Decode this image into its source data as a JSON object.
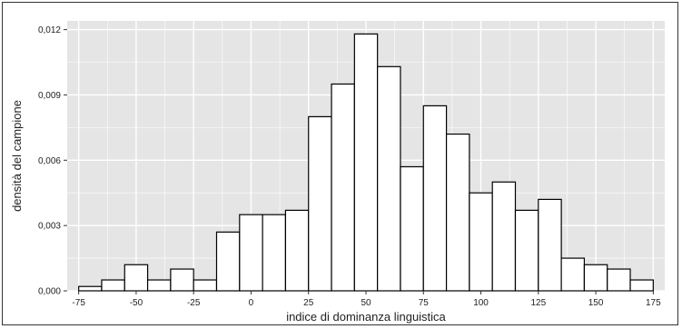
{
  "chart_data": {
    "type": "bar",
    "xlabel": "indice di dominanza linguistica",
    "ylabel": "densità del campione",
    "xlim": [
      -80,
      180
    ],
    "ylim": [
      0,
      0.0124
    ],
    "grid": true,
    "x_ticks": [
      {
        "value": -75,
        "label": "-75"
      },
      {
        "value": -50,
        "label": "-50"
      },
      {
        "value": -25,
        "label": "-25"
      },
      {
        "value": 0,
        "label": "0"
      },
      {
        "value": 25,
        "label": "25"
      },
      {
        "value": 50,
        "label": "50"
      },
      {
        "value": 75,
        "label": "75"
      },
      {
        "value": 100,
        "label": "100"
      },
      {
        "value": 125,
        "label": "125"
      },
      {
        "value": 150,
        "label": "150"
      },
      {
        "value": 175,
        "label": "175"
      }
    ],
    "y_ticks": [
      {
        "value": 0,
        "label": "0,000"
      },
      {
        "value": 0.003,
        "label": "0,003"
      },
      {
        "value": 0.006,
        "label": "0,006"
      },
      {
        "value": 0.009,
        "label": "0,009"
      },
      {
        "value": 0.012,
        "label": "0,012"
      }
    ],
    "bin_width": 10,
    "bins": [
      {
        "start": -75,
        "value": 0.0002
      },
      {
        "start": -65,
        "value": 0.0005
      },
      {
        "start": -55,
        "value": 0.0012
      },
      {
        "start": -45,
        "value": 0.0005
      },
      {
        "start": -35,
        "value": 0.001
      },
      {
        "start": -25,
        "value": 0.0005
      },
      {
        "start": -15,
        "value": 0.0027
      },
      {
        "start": -5,
        "value": 0.0035
      },
      {
        "start": 5,
        "value": 0.0035
      },
      {
        "start": 15,
        "value": 0.0037
      },
      {
        "start": 25,
        "value": 0.008
      },
      {
        "start": 35,
        "value": 0.0095
      },
      {
        "start": 45,
        "value": 0.0118
      },
      {
        "start": 55,
        "value": 0.0103
      },
      {
        "start": 65,
        "value": 0.0057
      },
      {
        "start": 75,
        "value": 0.0085
      },
      {
        "start": 85,
        "value": 0.0072
      },
      {
        "start": 95,
        "value": 0.0045
      },
      {
        "start": 105,
        "value": 0.005
      },
      {
        "start": 115,
        "value": 0.0037
      },
      {
        "start": 125,
        "value": 0.0042
      },
      {
        "start": 135,
        "value": 0.0015
      },
      {
        "start": 145,
        "value": 0.0012
      },
      {
        "start": 155,
        "value": 0.001
      },
      {
        "start": 165,
        "value": 0.0005
      }
    ],
    "colors": {
      "panel": "#e5e5e5",
      "grid": "#ffffff",
      "bar_fill": "#ffffff",
      "bar_stroke": "#000000",
      "text": "#222222"
    }
  }
}
